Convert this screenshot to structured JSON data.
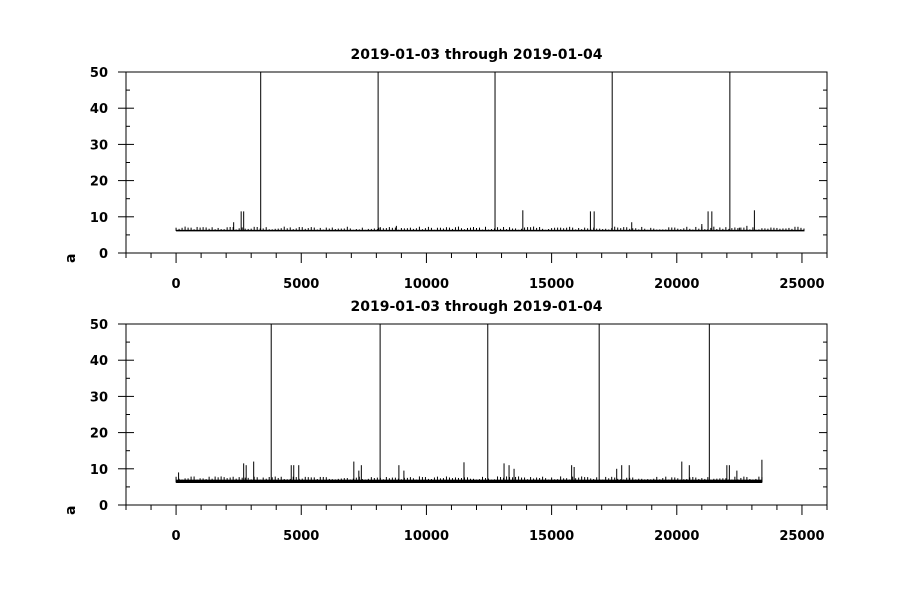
{
  "chart_data": [
    {
      "type": "line",
      "title": "2019-01-03 through 2019-01-04",
      "xlabel": "",
      "ylabel": "ance between Time Tags",
      "xlim": [
        -2000,
        26000
      ],
      "ylim": [
        0,
        50
      ],
      "xticks": [
        0,
        5000,
        10000,
        15000,
        20000,
        25000
      ],
      "xtick_labels": [
        "0",
        "5000",
        "10000",
        "15000",
        "20000",
        "25000"
      ],
      "yticks": [
        0,
        10,
        20,
        30,
        40,
        50
      ],
      "ytick_labels": [
        "0",
        "10",
        "20",
        "30",
        "40",
        "50"
      ],
      "grid": false,
      "series": [
        {
          "x_range": [
            0,
            25100
          ],
          "baseline": 6.1,
          "noise_floor": 6.4,
          "spikes": [
            {
              "x": 2300,
              "y": 8.5
            },
            {
              "x": 2600,
              "y": 11.5
            },
            {
              "x": 2700,
              "y": 11.5
            },
            {
              "x": 3380,
              "y": 50
            },
            {
              "x": 8070,
              "y": 50
            },
            {
              "x": 8100,
              "y": 7
            },
            {
              "x": 8800,
              "y": 7.5
            },
            {
              "x": 12740,
              "y": 50
            },
            {
              "x": 13850,
              "y": 11.8
            },
            {
              "x": 16550,
              "y": 11.5
            },
            {
              "x": 16700,
              "y": 11.5
            },
            {
              "x": 17420,
              "y": 50
            },
            {
              "x": 18200,
              "y": 8.5
            },
            {
              "x": 21000,
              "y": 8
            },
            {
              "x": 21250,
              "y": 11.5
            },
            {
              "x": 21400,
              "y": 11.5
            },
            {
              "x": 22120,
              "y": 50
            },
            {
              "x": 22500,
              "y": 7
            },
            {
              "x": 22800,
              "y": 7.5
            },
            {
              "x": 23100,
              "y": 11.8
            }
          ]
        }
      ]
    },
    {
      "type": "line",
      "title": "2019-01-03 through 2019-01-04",
      "xlabel": "",
      "ylabel": "ance between Time Tags",
      "xlim": [
        -2000,
        26000
      ],
      "ylim": [
        0,
        50
      ],
      "xticks": [
        0,
        5000,
        10000,
        15000,
        20000,
        25000
      ],
      "xtick_labels": [
        "0",
        "5000",
        "10000",
        "15000",
        "20000",
        "25000"
      ],
      "yticks": [
        0,
        10,
        20,
        30,
        40,
        50
      ],
      "ytick_labels": [
        "0",
        "10",
        "20",
        "30",
        "40",
        "50"
      ],
      "grid": false,
      "series": [
        {
          "x_range": [
            0,
            23400
          ],
          "baseline": 6.2,
          "noise_floor": 7.0,
          "spikes": [
            {
              "x": 100,
              "y": 9
            },
            {
              "x": 2700,
              "y": 11.5
            },
            {
              "x": 2800,
              "y": 11
            },
            {
              "x": 3100,
              "y": 12
            },
            {
              "x": 3800,
              "y": 50
            },
            {
              "x": 4600,
              "y": 11
            },
            {
              "x": 4700,
              "y": 11
            },
            {
              "x": 4900,
              "y": 11
            },
            {
              "x": 7100,
              "y": 12
            },
            {
              "x": 7300,
              "y": 9.5
            },
            {
              "x": 7400,
              "y": 11
            },
            {
              "x": 8150,
              "y": 50
            },
            {
              "x": 8900,
              "y": 11
            },
            {
              "x": 9100,
              "y": 9.5
            },
            {
              "x": 11500,
              "y": 11.8
            },
            {
              "x": 12450,
              "y": 50
            },
            {
              "x": 13100,
              "y": 11.5
            },
            {
              "x": 13300,
              "y": 11
            },
            {
              "x": 13500,
              "y": 10
            },
            {
              "x": 15800,
              "y": 11
            },
            {
              "x": 15900,
              "y": 10.5
            },
            {
              "x": 16900,
              "y": 50
            },
            {
              "x": 17600,
              "y": 10
            },
            {
              "x": 17800,
              "y": 11
            },
            {
              "x": 18100,
              "y": 11
            },
            {
              "x": 20200,
              "y": 12
            },
            {
              "x": 20500,
              "y": 11
            },
            {
              "x": 21300,
              "y": 50
            },
            {
              "x": 22000,
              "y": 11
            },
            {
              "x": 22100,
              "y": 11
            },
            {
              "x": 22400,
              "y": 9.5
            },
            {
              "x": 23400,
              "y": 12.5
            }
          ]
        }
      ]
    }
  ]
}
